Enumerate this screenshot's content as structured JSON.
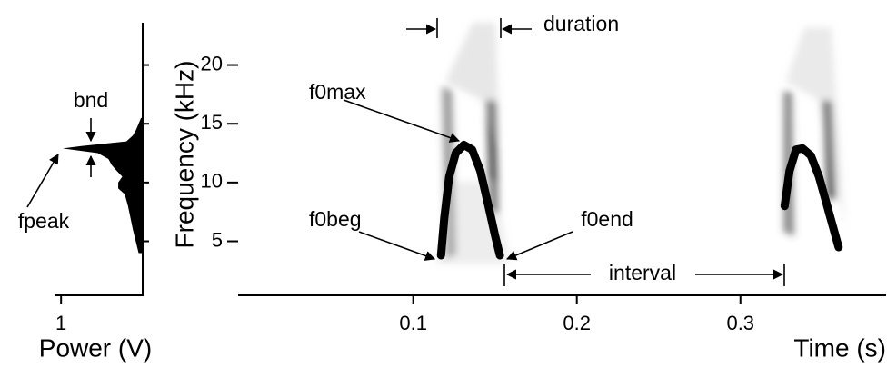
{
  "chart_data": [
    {
      "type": "spectrum",
      "xlabel": "Power (V)",
      "xlim": [
        1.08,
        0
      ],
      "xticks": [
        1
      ],
      "ylim": [
        0.4,
        23.6
      ],
      "x": [
        4,
        6,
        7,
        8,
        9,
        9.5,
        10,
        10.5,
        11,
        11.5,
        12,
        12.5,
        12.9,
        13.1,
        13.5,
        14,
        14.5,
        15.5
      ],
      "values": [
        0.05,
        0.12,
        0.15,
        0.18,
        0.22,
        0.3,
        0.3,
        0.25,
        0.32,
        0.38,
        0.42,
        0.55,
        0.98,
        0.75,
        0.2,
        0.12,
        0.08,
        0.02
      ],
      "color": "#000000",
      "annotations": [
        "bnd",
        "fpeak"
      ]
    },
    {
      "type": "spectrogram",
      "xlabel": "Time (s)",
      "ylabel": "Frequency (kHz)",
      "xlim": [
        -0.007,
        0.389
      ],
      "xticks": [
        0.1,
        0.2,
        0.3
      ],
      "ylim": [
        0.4,
        23.6
      ],
      "yticks": [
        5,
        10,
        15,
        20
      ],
      "series": [
        {
          "color": "#000000",
          "x": [
            0.117,
            0.119,
            0.122,
            0.126,
            0.131,
            0.136,
            0.141,
            0.146,
            0.15,
            0.153
          ],
          "values": [
            3.8,
            7,
            10.5,
            12.5,
            13.2,
            12.8,
            11,
            8,
            5.5,
            3.8
          ]
        },
        {
          "color": "#000000",
          "x": [
            0.327,
            0.33,
            0.334,
            0.338,
            0.343,
            0.348,
            0.353,
            0.357,
            0.36
          ],
          "values": [
            8,
            11,
            12.8,
            12.9,
            12.3,
            10.5,
            8,
            6,
            4.5
          ]
        }
      ],
      "annotations": [
        "f0max",
        "f0beg",
        "f0end",
        "duration",
        "interval"
      ]
    }
  ]
}
